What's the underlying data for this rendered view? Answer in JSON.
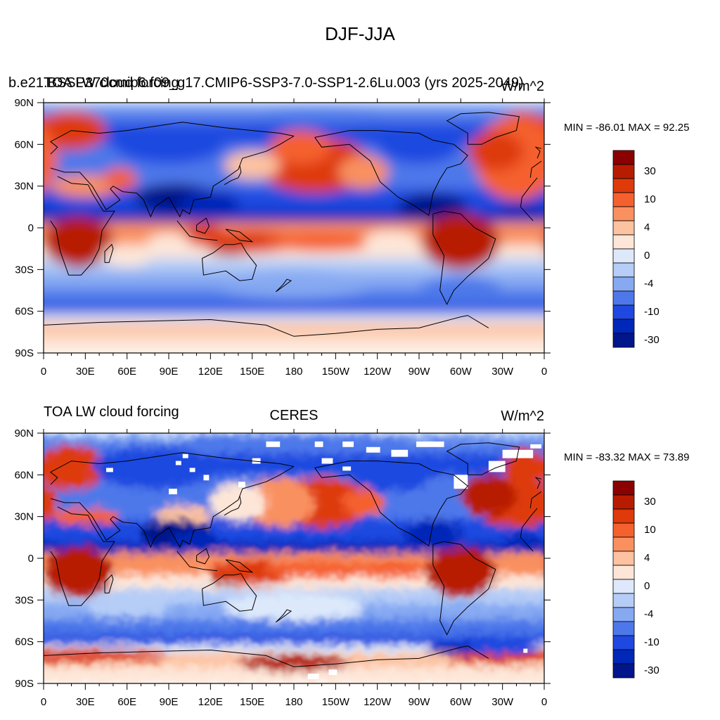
{
  "figure_title": "DJF-JJA",
  "colors": {
    "levels": [
      "#8b0000",
      "#b71c00",
      "#de3a0a",
      "#f5602f",
      "#f9905f",
      "#fdc2a0",
      "#fde6d8",
      "#dde9fb",
      "#b5cdf7",
      "#86a9f2",
      "#4e78ea",
      "#1e48e0",
      "#0028b8",
      "#00168a"
    ],
    "land_outline": "#000000",
    "missing": "#ffffff"
  },
  "chart_data": [
    {
      "type": "heatmap",
      "title_left": "b.e21.BSSP370cmip6.f09_g17.CMIP6-SSP3-7.0-SSP1-2.6Lu.003 (yrs 2025-2049)",
      "title_left_overprint": "TOA LW cloud forcing",
      "units": "W/m^2",
      "stats": "MIN = -86.01 MAX =  92.25",
      "min": -86.01,
      "max": 92.25,
      "x_ticks": [
        "0",
        "30E",
        "60E",
        "90E",
        "120E",
        "150E",
        "180",
        "150W",
        "120W",
        "90W",
        "60W",
        "30W",
        "0"
      ],
      "y_ticks": [
        "90N",
        "60N",
        "30N",
        "0",
        "30S",
        "60S",
        "90S"
      ],
      "xlim": [
        0,
        360
      ],
      "ylim": [
        -90,
        90
      ],
      "colorbar_labels": [
        "30",
        "10",
        "4",
        "0",
        "-4",
        "-10",
        "-30"
      ],
      "colorbar_levels": [
        30,
        20,
        10,
        7,
        4,
        2,
        0,
        -2,
        -4,
        -7,
        -10,
        -20,
        -30
      ]
    },
    {
      "type": "heatmap",
      "title_left": "TOA LW cloud forcing",
      "title_center": "CERES",
      "units": "W/m^2",
      "stats": "MIN = -83.32 MAX =  73.89",
      "min": -83.32,
      "max": 73.89,
      "x_ticks": [
        "0",
        "30E",
        "60E",
        "90E",
        "120E",
        "150E",
        "180",
        "150W",
        "120W",
        "90W",
        "60W",
        "30W",
        "0"
      ],
      "y_ticks": [
        "90N",
        "60N",
        "30N",
        "0",
        "30S",
        "60S",
        "90S"
      ],
      "xlim": [
        0,
        360
      ],
      "ylim": [
        -90,
        90
      ],
      "colorbar_labels": [
        "30",
        "10",
        "4",
        "0",
        "-4",
        "-10",
        "-30"
      ],
      "colorbar_levels": [
        30,
        20,
        10,
        7,
        4,
        2,
        0,
        -2,
        -4,
        -7,
        -10,
        -20,
        -30
      ]
    }
  ]
}
